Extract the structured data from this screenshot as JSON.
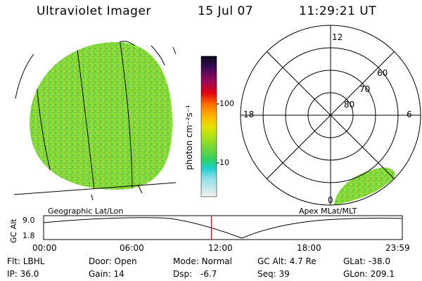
{
  "header": {
    "title": "Ultraviolet Imager",
    "date": "15 Jul 07",
    "time": "11:29:21 UT"
  },
  "colorbar": {
    "unit_label": "photon cm⁻²s⁻¹",
    "ticks": [
      "100",
      "10"
    ]
  },
  "polar_plot": {
    "mlt_labels": {
      "top": "12",
      "left": "18",
      "right": "6",
      "bottom": "0"
    },
    "lat_labels": [
      "60",
      "70",
      "80"
    ]
  },
  "map_labels": {
    "left": "Geographic Lat/Lon",
    "right": "Apex MLat/MLT"
  },
  "timeline": {
    "ylabel": "GC Alt",
    "y_ticks": [
      "9.0",
      "1.8"
    ],
    "x_ticks": [
      "00:00",
      "06:00",
      "12:00",
      "18:00",
      "23:59"
    ],
    "current_fraction": 0.4676
  },
  "status": {
    "row1": [
      {
        "key": "Flt:",
        "value": "LBHL"
      },
      {
        "key": "Door:",
        "value": "Open"
      },
      {
        "key": "Mode:",
        "value": "Normal"
      },
      {
        "key": "GC Alt:",
        "value": "4.7 Re"
      },
      {
        "key": "GLat:",
        "value": "-38.0"
      }
    ],
    "row2": [
      {
        "key": "IP:",
        "value": "36.0"
      },
      {
        "key": "Gain:",
        "value": "14"
      },
      {
        "key": "Dsp:",
        "value": "-6.7"
      },
      {
        "key": "Seq:",
        "value": "39"
      },
      {
        "key": "GLon:",
        "value": "209.1"
      }
    ]
  },
  "colors": {
    "image_green": "#7fd63a",
    "time_marker": "#cc0000"
  }
}
